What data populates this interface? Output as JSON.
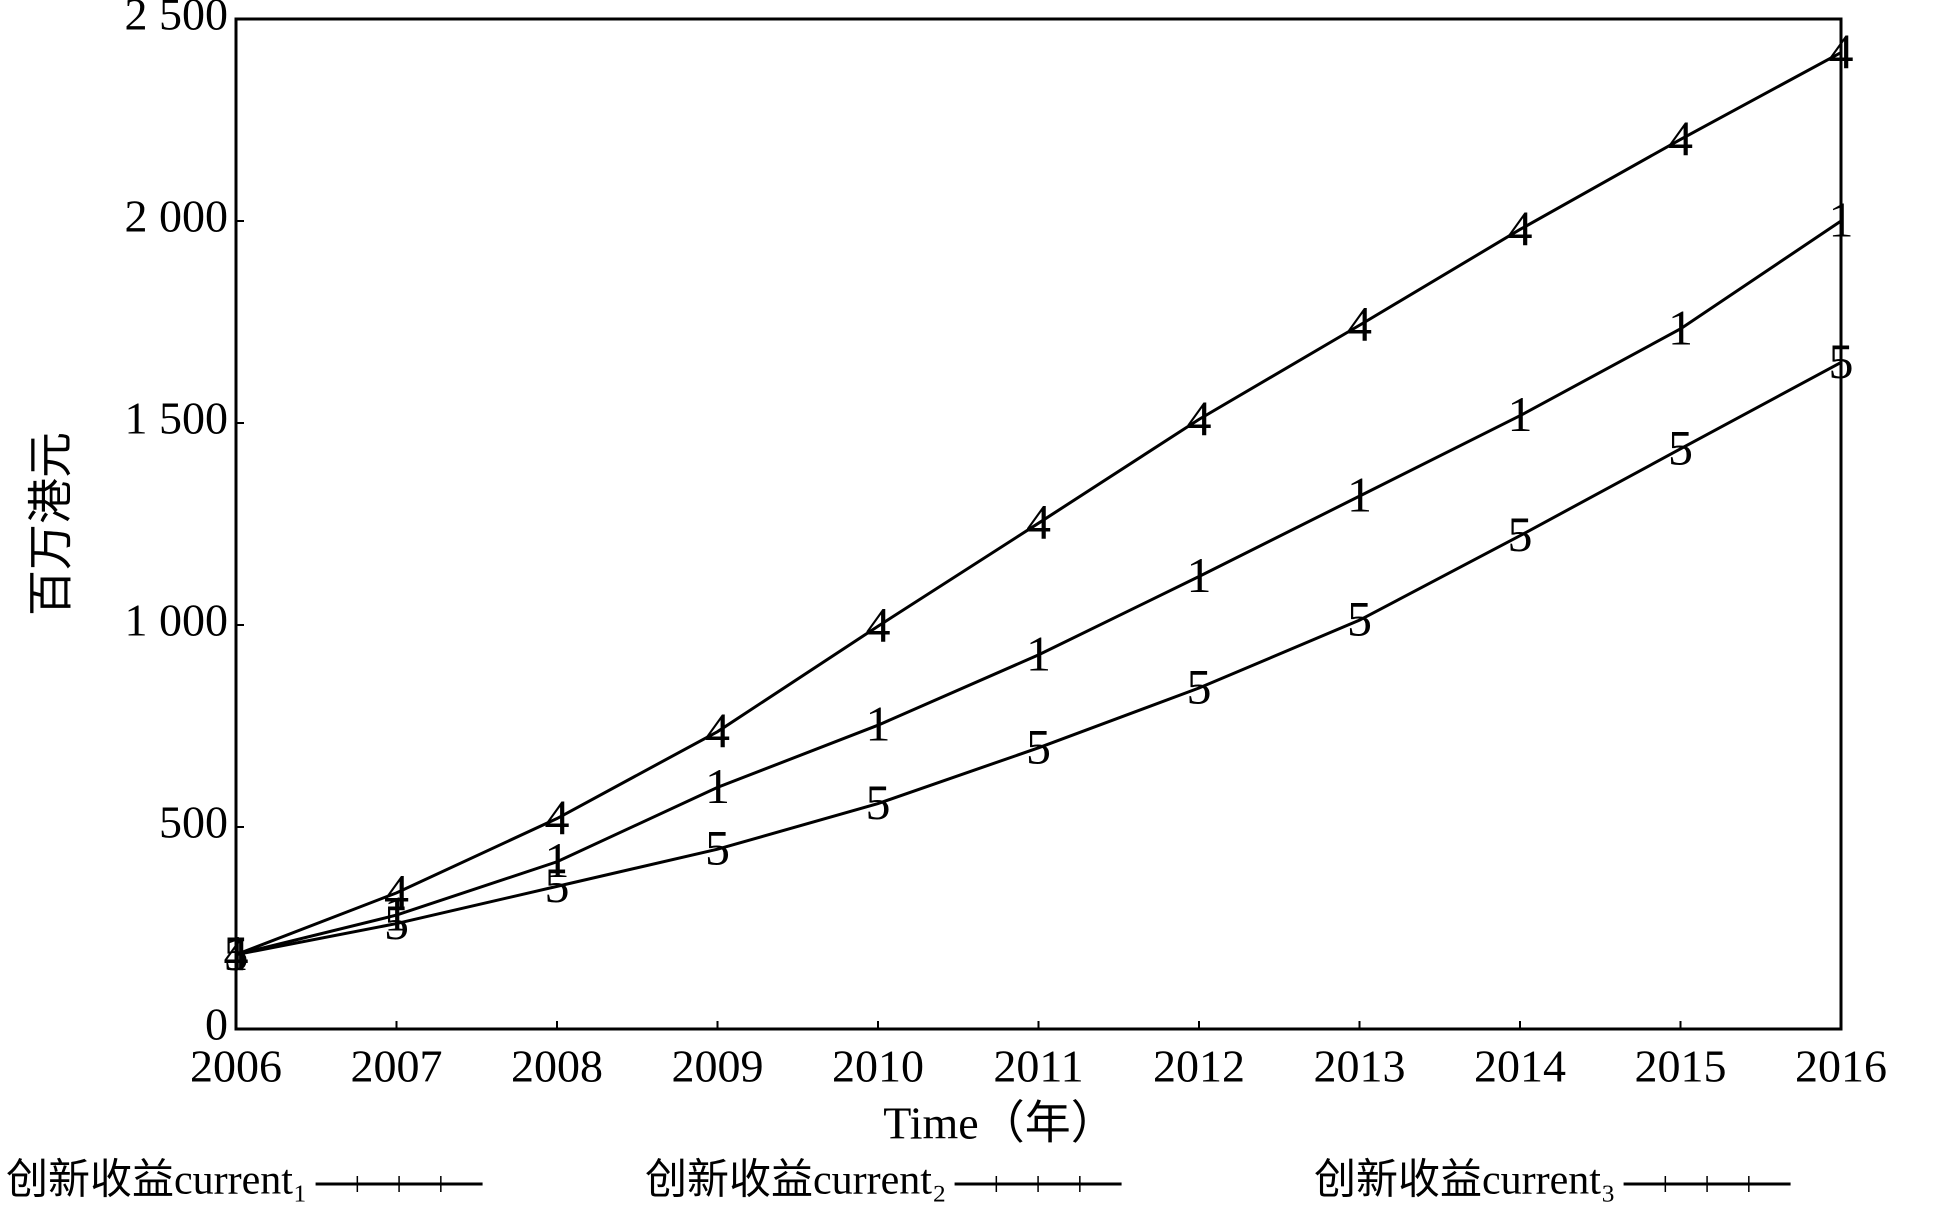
{
  "chart_data": {
    "type": "line",
    "x_label": "Time（年）",
    "y_label": "百万港元",
    "x": [
      2006,
      2007,
      2008,
      2009,
      2010,
      2011,
      2012,
      2013,
      2014,
      2015,
      2016
    ],
    "xlim": [
      2006,
      2016
    ],
    "xticks": [
      2006,
      2007,
      2008,
      2009,
      2010,
      2011,
      2012,
      2013,
      2014,
      2015,
      2016
    ],
    "ylim": [
      0,
      2500
    ],
    "yticks": [
      0,
      500,
      {
        "value": 1000,
        "label": "1 000"
      },
      {
        "value": 1500,
        "label": "1 500"
      },
      {
        "value": 2000,
        "label": "2 000"
      },
      {
        "value": 2500,
        "label": "2 500"
      }
    ],
    "series": [
      {
        "name": "创新收益current₁",
        "marker": "1",
        "color": "#000000",
        "values": [
          184,
          282,
          414,
          598,
          752,
          926,
          1120,
          1319,
          1518,
          1733,
          2000
        ]
      },
      {
        "name": "创新收益current₂",
        "marker": "4",
        "color": "#000000",
        "values": [
          184,
          337,
          521,
          736,
          997,
          1252,
          1509,
          1742,
          1979,
          2202,
          2417
        ]
      },
      {
        "name": "创新收益current₃",
        "marker": "5",
        "color": "#000000",
        "values": [
          184,
          261,
          353,
          445,
          558,
          696,
          844,
          1012,
          1221,
          1436,
          1650
        ]
      }
    ]
  }
}
